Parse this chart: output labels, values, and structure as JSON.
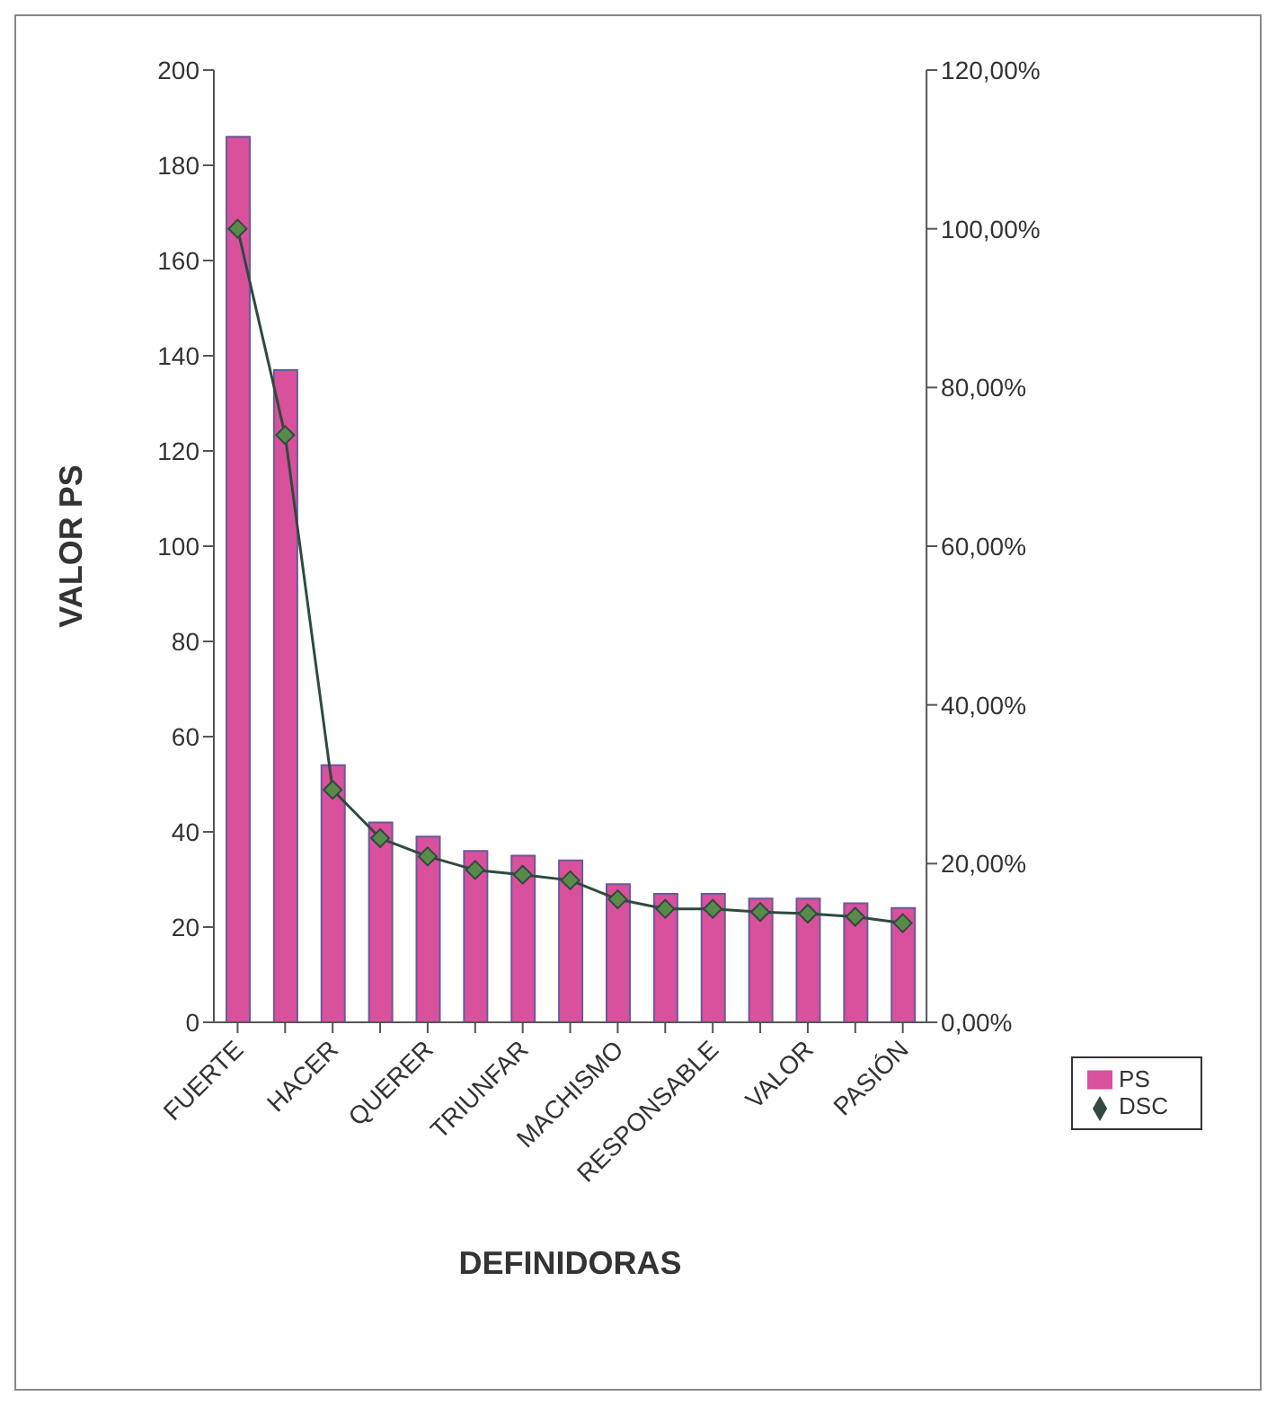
{
  "chart_data": {
    "type": "bar",
    "xlabel": "DEFINIDORAS",
    "ylabel": "VALOR PS",
    "categories": [
      "FUERTE",
      null,
      "HACER",
      null,
      "QUERER",
      null,
      "TRIUNFAR",
      null,
      "MACHISMO",
      null,
      "RESPONSABLE",
      null,
      "VALOR",
      null,
      "PASIÓN"
    ],
    "series": [
      {
        "name": "PS",
        "color": "#d9509c",
        "values": [
          186,
          137,
          54,
          42,
          39,
          36,
          35,
          34,
          29,
          27,
          27,
          26,
          26,
          25,
          24
        ]
      },
      {
        "name": "DSC",
        "type": "line",
        "axis": "y2",
        "color": "#2f4a3f",
        "marker": "diamond",
        "values": [
          100,
          74,
          29.3,
          23.2,
          20.9,
          19.2,
          18.6,
          17.9,
          15.5,
          14.3,
          14.3,
          13.9,
          13.7,
          13.3,
          12.5
        ]
      }
    ],
    "ylim": [
      0,
      200
    ],
    "yticks": [
      0,
      20,
      40,
      60,
      80,
      100,
      120,
      140,
      160,
      180,
      200
    ],
    "y2lim": [
      0,
      120
    ],
    "y2ticks": [
      {
        "value": 0,
        "label": "0,00%"
      },
      {
        "value": 20,
        "label": "20,00%"
      },
      {
        "value": 40,
        "label": "40,00%"
      },
      {
        "value": 60,
        "label": "60,00%"
      },
      {
        "value": 80,
        "label": "80,00%"
      },
      {
        "value": 100,
        "label": "100,00%"
      },
      {
        "value": 120,
        "label": "120,00%"
      }
    ],
    "legend": "bottom right",
    "grid": false
  }
}
